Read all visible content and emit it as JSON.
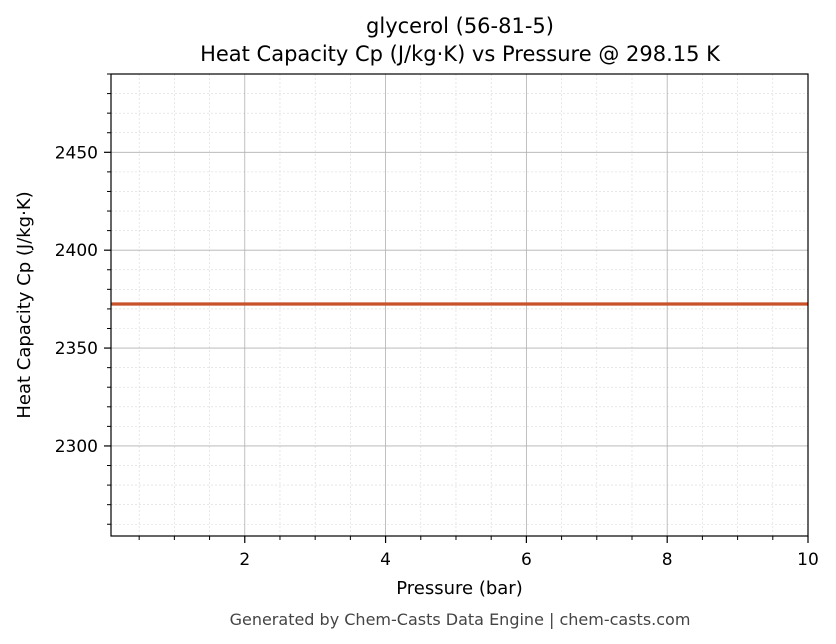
{
  "chart_data": {
    "type": "line",
    "title": "glycerol (56-81-5)",
    "subtitle": "Heat Capacity Cp (J/kg·K) vs Pressure @ 298.15 K",
    "xlabel": "Pressure (bar)",
    "ylabel": "Heat Capacity Cp (J/kg·K)",
    "xlim": [
      0.1,
      10
    ],
    "ylim": [
      2254,
      2490
    ],
    "x_ticks": [
      2,
      4,
      6,
      8,
      10
    ],
    "y_ticks": [
      2300,
      2350,
      2400,
      2450
    ],
    "grid": true,
    "series": [
      {
        "color": "#c8522a",
        "x": [
          0.1,
          10
        ],
        "y": [
          2372.5,
          2372.5
        ]
      }
    ]
  },
  "footer": "Generated by Chem-Casts Data Engine | chem-casts.com"
}
